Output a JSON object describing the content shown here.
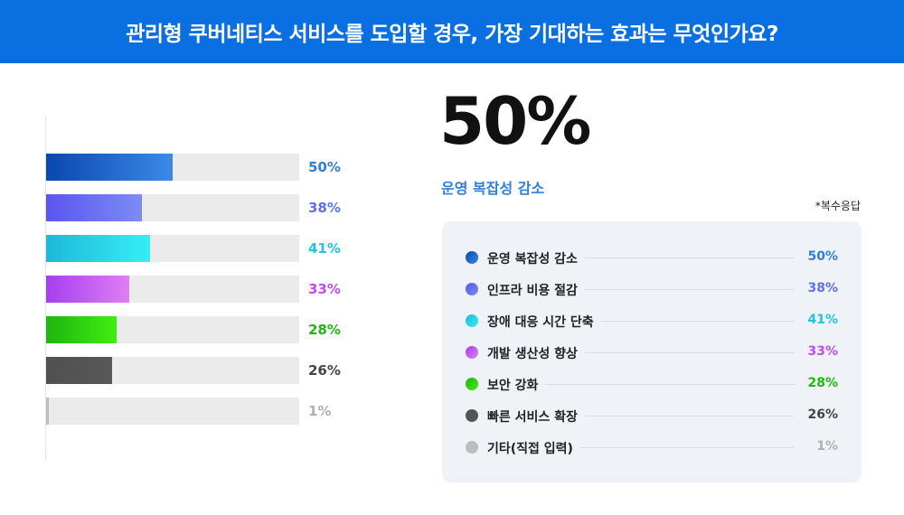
{
  "header": {
    "title": "관리형 쿠버네티스 서비스를 도입할 경우, 가장 기대하는 효과는 무엇인가요?"
  },
  "highlight": {
    "value": "50%",
    "label": "운영 복잡성 감소"
  },
  "note": "*복수응답",
  "chart_data": {
    "type": "bar",
    "orientation": "horizontal",
    "title": "관리형 쿠버네티스 서비스를 도입할 경우, 가장 기대하는 효과는 무엇인가요?",
    "xlim": [
      0,
      100
    ],
    "unit": "%",
    "categories": [
      "운영 복잡성 감소",
      "인프라 비용 절감",
      "장애 대응 시간 단축",
      "개발 생산성 향상",
      "보안 강화",
      "빠른 서비스 확장",
      "기타(직접 입력)"
    ],
    "values": [
      50,
      38,
      41,
      33,
      28,
      26,
      1
    ],
    "value_labels": [
      "50%",
      "38%",
      "41%",
      "33%",
      "28%",
      "26%",
      "1%"
    ],
    "colors": [
      {
        "start": "#0a47b0",
        "end": "#3a8ae6",
        "text": "#2f7fd6"
      },
      {
        "start": "#5a55f0",
        "end": "#7b8cf5",
        "text": "#5f70e8"
      },
      {
        "start": "#1fb8d8",
        "end": "#35eef6",
        "text": "#20c4dc"
      },
      {
        "start": "#a43ff0",
        "end": "#e07ff2",
        "text": "#c24de8"
      },
      {
        "start": "#1fb410",
        "end": "#40ee10",
        "text": "#22b511"
      },
      {
        "start": "#505050",
        "end": "#585858",
        "text": "#444444"
      },
      {
        "start": "#bdbdbd",
        "end": "#bdbdbd",
        "text": "#b0b0b0"
      }
    ],
    "legend": "right"
  }
}
